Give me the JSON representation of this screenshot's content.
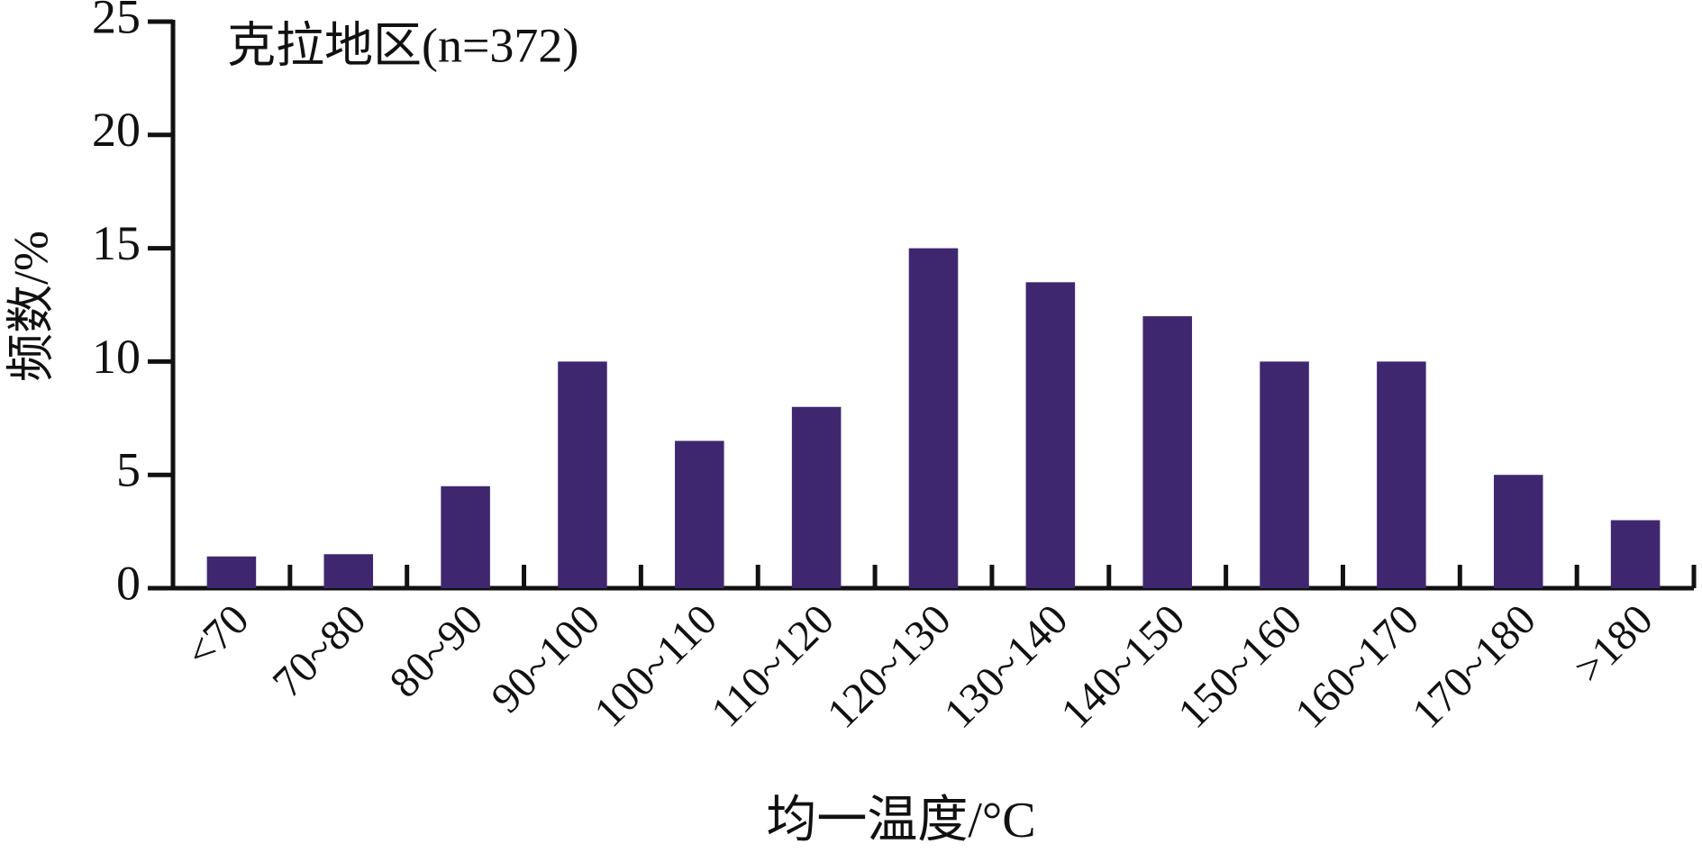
{
  "chart_data": {
    "type": "bar",
    "annotation": "克拉地区(n=372)",
    "xlabel": "均一温度/°C",
    "ylabel": "频数/%",
    "categories": [
      "<70",
      "70~80",
      "80~90",
      "90~100",
      "100~110",
      "110~120",
      "120~130",
      "130~140",
      "140~150",
      "150~160",
      "160~170",
      "170~180",
      ">180"
    ],
    "values": [
      1.4,
      1.5,
      4.5,
      10,
      6.5,
      8,
      15,
      13.5,
      12,
      10,
      10,
      5,
      3
    ],
    "color": "#3f2770",
    "ylim": [
      0,
      25
    ],
    "yticks": [
      0,
      5,
      10,
      15,
      20,
      25
    ],
    "grid": false
  }
}
